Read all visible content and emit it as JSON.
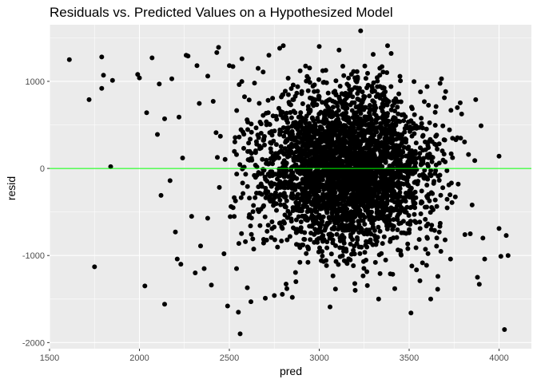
{
  "chart_data": {
    "type": "scatter",
    "title": "Residuals vs. Predicted Values on a Hypothesized Model",
    "xlabel": "pred",
    "ylabel": "resid",
    "xlim": [
      1500,
      4180
    ],
    "ylim": [
      -2070,
      1650
    ],
    "x_ticks": [
      1500,
      2000,
      2500,
      3000,
      3500,
      4000
    ],
    "x_tick_labels": [
      "1500",
      "2000",
      "2500",
      "3000",
      "3500",
      "4000"
    ],
    "y_ticks": [
      -2000,
      -1000,
      0,
      1000
    ],
    "y_tick_labels": [
      "-2000",
      "-1000",
      "0",
      "1000"
    ],
    "reference_line": {
      "y": 0,
      "color": "#00FF00"
    },
    "colors": {
      "panel": "#EBEBEB",
      "grid": "#FFFFFF",
      "points": "#000000"
    },
    "outlier_points": [
      [
        1610,
        1250
      ],
      [
        1720,
        790
      ],
      [
        1750,
        -1130
      ],
      [
        1790,
        1280
      ],
      [
        1800,
        1070
      ],
      [
        1790,
        920
      ],
      [
        1840,
        20
      ],
      [
        1850,
        1010
      ],
      [
        1990,
        1080
      ],
      [
        2000,
        1040
      ],
      [
        2030,
        -1350
      ],
      [
        2040,
        640
      ],
      [
        2070,
        1270
      ],
      [
        2100,
        390
      ],
      [
        2110,
        970
      ],
      [
        2120,
        -310
      ],
      [
        2140,
        -1560
      ],
      [
        2140,
        570
      ],
      [
        2170,
        -140
      ],
      [
        2180,
        1030
      ],
      [
        2200,
        -730
      ],
      [
        2210,
        -1040
      ],
      [
        2220,
        590
      ],
      [
        2230,
        -1100
      ],
      [
        2240,
        120
      ],
      [
        2260,
        1300
      ],
      [
        2270,
        1290
      ],
      [
        2290,
        -550
      ],
      [
        2310,
        -1200
      ],
      [
        2320,
        1180
      ],
      [
        2340,
        -890
      ],
      [
        2360,
        -1150
      ],
      [
        2380,
        1060
      ],
      [
        2400,
        -1340
      ],
      [
        2410,
        770
      ],
      [
        2430,
        1330
      ],
      [
        2440,
        1390
      ],
      [
        2450,
        370
      ],
      [
        2470,
        -980
      ],
      [
        2490,
        -1580
      ],
      [
        2500,
        1180
      ],
      [
        2520,
        1170
      ],
      [
        2540,
        -1150
      ],
      [
        2550,
        -1650
      ],
      [
        2560,
        -1900
      ],
      [
        2570,
        1260
      ],
      [
        2600,
        -1370
      ],
      [
        2620,
        -1530
      ],
      [
        2640,
        980
      ],
      [
        2660,
        1150
      ],
      [
        2700,
        -1490
      ],
      [
        2720,
        1300
      ],
      [
        2750,
        -1460
      ],
      [
        2780,
        1380
      ],
      [
        2800,
        1410
      ],
      [
        2820,
        -1380
      ],
      [
        2850,
        -1480
      ],
      [
        2870,
        -1300
      ],
      [
        3000,
        1400
      ],
      [
        3060,
        -1590
      ],
      [
        3110,
        1360
      ],
      [
        3200,
        -1400
      ],
      [
        3230,
        1580
      ],
      [
        3300,
        1310
      ],
      [
        3330,
        -1500
      ],
      [
        3380,
        1410
      ],
      [
        3400,
        1320
      ],
      [
        3420,
        -1380
      ],
      [
        3510,
        -1660
      ],
      [
        3560,
        -1290
      ],
      [
        3600,
        940
      ],
      [
        3620,
        -1500
      ],
      [
        3660,
        -1240
      ],
      [
        3680,
        1030
      ],
      [
        3700,
        -820
      ],
      [
        3730,
        -1040
      ],
      [
        3760,
        330
      ],
      [
        3810,
        -760
      ],
      [
        3830,
        160
      ],
      [
        3850,
        -420
      ],
      [
        3870,
        790
      ],
      [
        3880,
        -1250
      ],
      [
        3890,
        -1330
      ],
      [
        3900,
        490
      ],
      [
        3910,
        -800
      ],
      [
        3920,
        -1040
      ],
      [
        4000,
        140
      ],
      [
        4000,
        -690
      ],
      [
        4010,
        -1010
      ],
      [
        4030,
        -1850
      ],
      [
        4040,
        -770
      ],
      [
        4050,
        -1000
      ],
      [
        3570,
        60
      ],
      [
        3620,
        120
      ],
      [
        3650,
        40
      ]
    ]
  }
}
